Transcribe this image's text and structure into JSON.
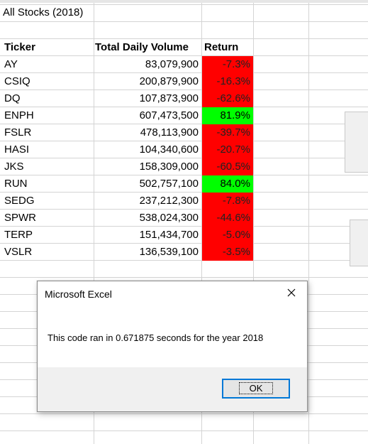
{
  "sheet": {
    "title": "All Stocks (2018)",
    "headers": [
      "Ticker",
      "Total Daily Volume",
      "Return"
    ],
    "rows": [
      {
        "ticker": "AY",
        "volume": "83,079,900",
        "ret": "-7.3%",
        "positive": false
      },
      {
        "ticker": "CSIQ",
        "volume": "200,879,900",
        "ret": "-16.3%",
        "positive": false
      },
      {
        "ticker": "DQ",
        "volume": "107,873,900",
        "ret": "-62.6%",
        "positive": false
      },
      {
        "ticker": "ENPH",
        "volume": "607,473,500",
        "ret": "81.9%",
        "positive": true
      },
      {
        "ticker": "FSLR",
        "volume": "478,113,900",
        "ret": "-39.7%",
        "positive": false
      },
      {
        "ticker": "HASI",
        "volume": "104,340,600",
        "ret": "-20.7%",
        "positive": false
      },
      {
        "ticker": "JKS",
        "volume": "158,309,000",
        "ret": "-60.5%",
        "positive": false
      },
      {
        "ticker": "RUN",
        "volume": "502,757,100",
        "ret": "84.0%",
        "positive": true
      },
      {
        "ticker": "SEDG",
        "volume": "237,212,300",
        "ret": "-7.8%",
        "positive": false
      },
      {
        "ticker": "SPWR",
        "volume": "538,024,300",
        "ret": "-44.6%",
        "positive": false
      },
      {
        "ticker": "TERP",
        "volume": "151,434,700",
        "ret": "-5.0%",
        "positive": false
      },
      {
        "ticker": "VSLR",
        "volume": "136,539,100",
        "ret": "-3.5%",
        "positive": false
      }
    ]
  },
  "dialog": {
    "title": "Microsoft Excel",
    "message": "This code ran in 0.671875 seconds for the year 2018",
    "ok_label": "OK"
  },
  "colors": {
    "negative_fill": "#ff0000",
    "positive_fill": "#00ff00",
    "gridline": "#d4d4d4",
    "accent": "#0078d7"
  }
}
